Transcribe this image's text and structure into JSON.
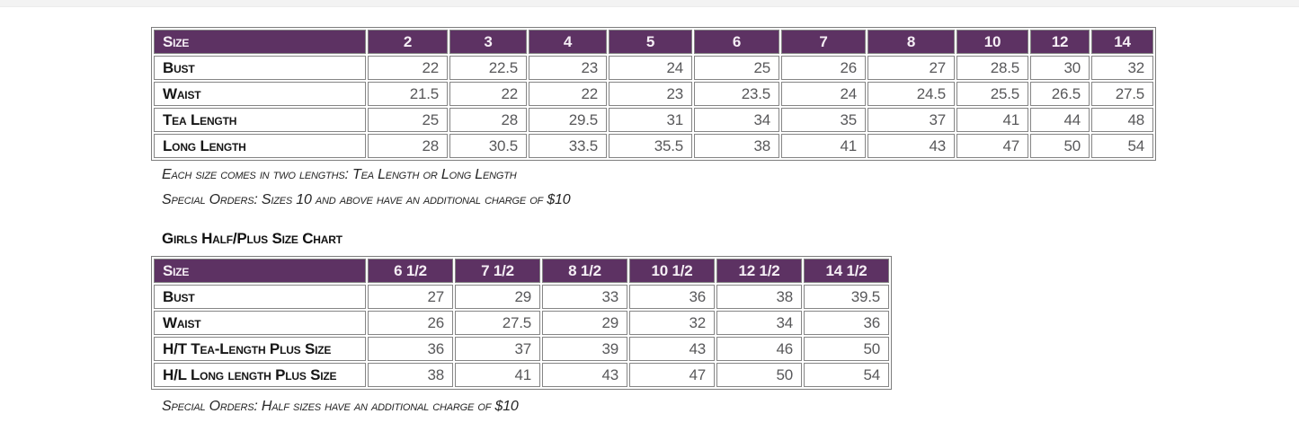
{
  "page": {
    "top_strip_color": "#f3f3f3",
    "background": "#ffffff"
  },
  "colors": {
    "header_bg": "#5d3263",
    "header_text": "#f5eef5",
    "cell_border": "#858585",
    "value_text": "#58585a",
    "label_text": "#161616"
  },
  "standard_chart": {
    "header": [
      "Size",
      "2",
      "3",
      "4",
      "5",
      "6",
      "7",
      "8",
      "10",
      "12",
      "14"
    ],
    "rows": [
      {
        "label": "Bust",
        "values": [
          "22",
          "22.5",
          "23",
          "24",
          "25",
          "26",
          "27",
          "28.5",
          "30",
          "32"
        ]
      },
      {
        "label": "Waist",
        "values": [
          "21.5",
          "22",
          "22",
          "23",
          "23.5",
          "24",
          "24.5",
          "25.5",
          "26.5",
          "27.5"
        ]
      },
      {
        "label": "Tea Length",
        "values": [
          "25",
          "28",
          "29.5",
          "31",
          "34",
          "35",
          "37",
          "41",
          "44",
          "48"
        ]
      },
      {
        "label": "Long Length",
        "values": [
          "28",
          "30.5",
          "33.5",
          "35.5",
          "38",
          "41",
          "43",
          "47",
          "50",
          "54"
        ]
      }
    ],
    "note_lengths": "Each size comes in two lengths: Tea Length or Long Length",
    "note_special": "Special Orders: Sizes 10 and above have an additional charge of $10"
  },
  "half_plus_chart": {
    "title": "Girls Half/Plus Size Chart",
    "header": [
      "Size",
      "6 1/2",
      "7 1/2",
      "8 1/2",
      "10 1/2",
      "12 1/2",
      "14 1/2"
    ],
    "rows": [
      {
        "label": "Bust",
        "values": [
          "27",
          "29",
          "33",
          "36",
          "38",
          "39.5"
        ]
      },
      {
        "label": "Waist",
        "values": [
          "26",
          "27.5",
          "29",
          "32",
          "34",
          "36"
        ]
      },
      {
        "label": "H/T Tea-Length Plus Size",
        "values": [
          "36",
          "37",
          "39",
          "43",
          "46",
          "50"
        ]
      },
      {
        "label": "H/L Long length Plus Size",
        "values": [
          "38",
          "41",
          "43",
          "47",
          "50",
          "54"
        ]
      }
    ],
    "note_special": "Special Orders: Half sizes have an additional charge of $10"
  }
}
